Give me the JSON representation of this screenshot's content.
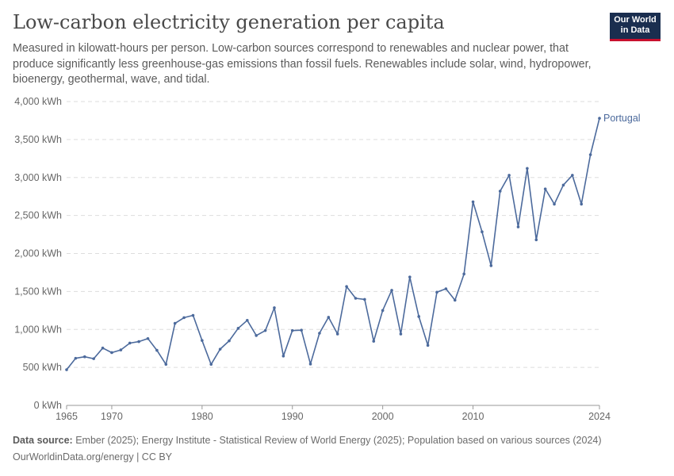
{
  "header": {
    "title": "Low-carbon electricity generation per capita",
    "subtitle": "Measured in kilowatt-hours per person. Low-carbon sources correspond to renewables and nuclear power, that produce significantly less greenhouse-gas emissions than fossil fuels. Renewables include solar, wind, hydropower, bioenergy, geothermal, wave, and tidal.",
    "logo_line1": "Our World",
    "logo_line2": "in Data"
  },
  "footer": {
    "source_label": "Data source:",
    "source_text": "Ember (2025); Energy Institute - Statistical Review of World Energy (2025); Population based on various sources (2024)",
    "credit": "OurWorldinData.org/energy | CC BY"
  },
  "colors": {
    "series": "#4c6a9c",
    "grid": "#dddddd",
    "axis_text": "#666666"
  },
  "chart_data": {
    "type": "line",
    "title": "Low-carbon electricity generation per capita",
    "ylim": [
      0,
      4000
    ],
    "xlim": [
      1965,
      2024
    ],
    "y_ticks": [
      0,
      500,
      1000,
      1500,
      2000,
      2500,
      3000,
      3500,
      4000
    ],
    "y_tick_labels": [
      "0 kWh",
      "500 kWh",
      "1,000 kWh",
      "1,500 kWh",
      "2,000 kWh",
      "2,500 kWh",
      "3,000 kWh",
      "3,500 kWh",
      "4,000 kWh"
    ],
    "x_ticks": [
      1965,
      1970,
      1980,
      1990,
      2000,
      2010,
      2024
    ],
    "x_tick_labels": [
      "1965",
      "1970",
      "1980",
      "1990",
      "2000",
      "2010",
      "2024"
    ],
    "grid": true,
    "series": [
      {
        "name": "Portugal",
        "x": [
          1965,
          1966,
          1967,
          1968,
          1969,
          1970,
          1971,
          1972,
          1973,
          1974,
          1975,
          1976,
          1977,
          1978,
          1979,
          1980,
          1981,
          1982,
          1983,
          1984,
          1985,
          1986,
          1987,
          1988,
          1989,
          1990,
          1991,
          1992,
          1993,
          1994,
          1995,
          1996,
          1997,
          1998,
          1999,
          2000,
          2001,
          2002,
          2003,
          2004,
          2005,
          2006,
          2007,
          2008,
          2009,
          2010,
          2011,
          2012,
          2013,
          2014,
          2015,
          2016,
          2017,
          2018,
          2019,
          2020,
          2021,
          2022,
          2023,
          2024
        ],
        "values": [
          470,
          620,
          640,
          615,
          755,
          695,
          730,
          820,
          840,
          880,
          725,
          540,
          1080,
          1155,
          1185,
          855,
          540,
          740,
          850,
          1015,
          1120,
          920,
          985,
          1285,
          650,
          985,
          990,
          545,
          950,
          1160,
          940,
          1565,
          1410,
          1395,
          845,
          1250,
          1515,
          940,
          1690,
          1170,
          790,
          1490,
          1535,
          1385,
          1730,
          2680,
          2285,
          1840,
          2820,
          3030,
          2350,
          3120,
          2180,
          2850,
          2650,
          2900,
          3030,
          2650,
          3300,
          3780
        ]
      }
    ]
  }
}
